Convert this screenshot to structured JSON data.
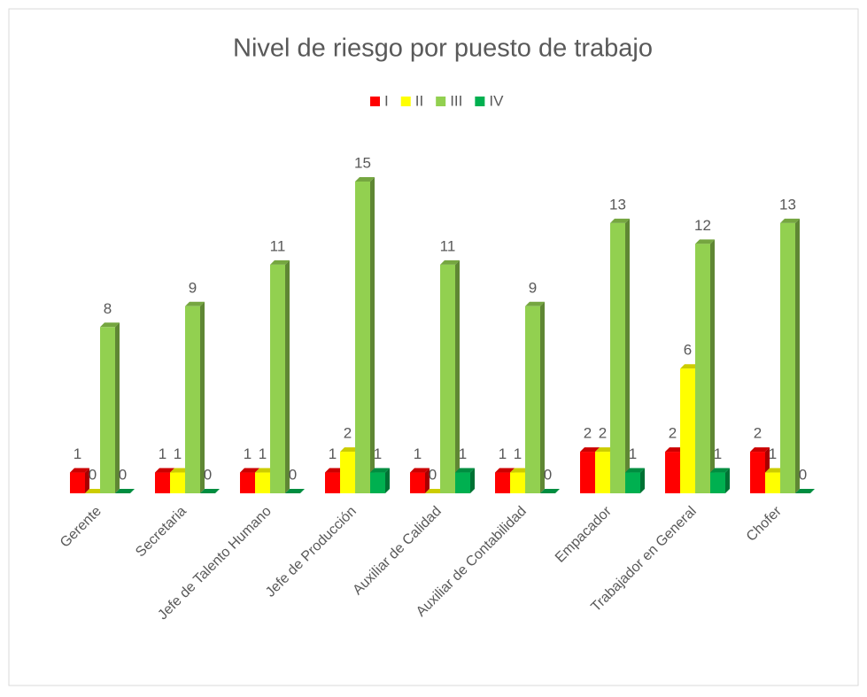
{
  "chart_data": {
    "type": "bar3d",
    "title": "Nivel de riesgo por puesto de trabajo",
    "categories": [
      "Gerente",
      "Secretaria",
      "Jefe de Talento Humano",
      "Jefe de Producción",
      "Auxiliar de Calidad",
      "Auxiliar de Contabilidad",
      "Empacador",
      "Trabajador en General",
      "Chofer"
    ],
    "series": [
      {
        "name": "I",
        "color": "#ff0000",
        "values": [
          1,
          1,
          1,
          1,
          1,
          1,
          2,
          2,
          2
        ]
      },
      {
        "name": "II",
        "color": "#ffff00",
        "values": [
          0,
          1,
          1,
          2,
          0,
          1,
          2,
          6,
          1
        ]
      },
      {
        "name": "III",
        "color": "#92d050",
        "values": [
          8,
          9,
          11,
          15,
          11,
          9,
          13,
          12,
          13
        ]
      },
      {
        "name": "IV",
        "color": "#00b050",
        "values": [
          0,
          0,
          0,
          1,
          1,
          0,
          1,
          1,
          0
        ]
      }
    ],
    "legend": "top"
  }
}
